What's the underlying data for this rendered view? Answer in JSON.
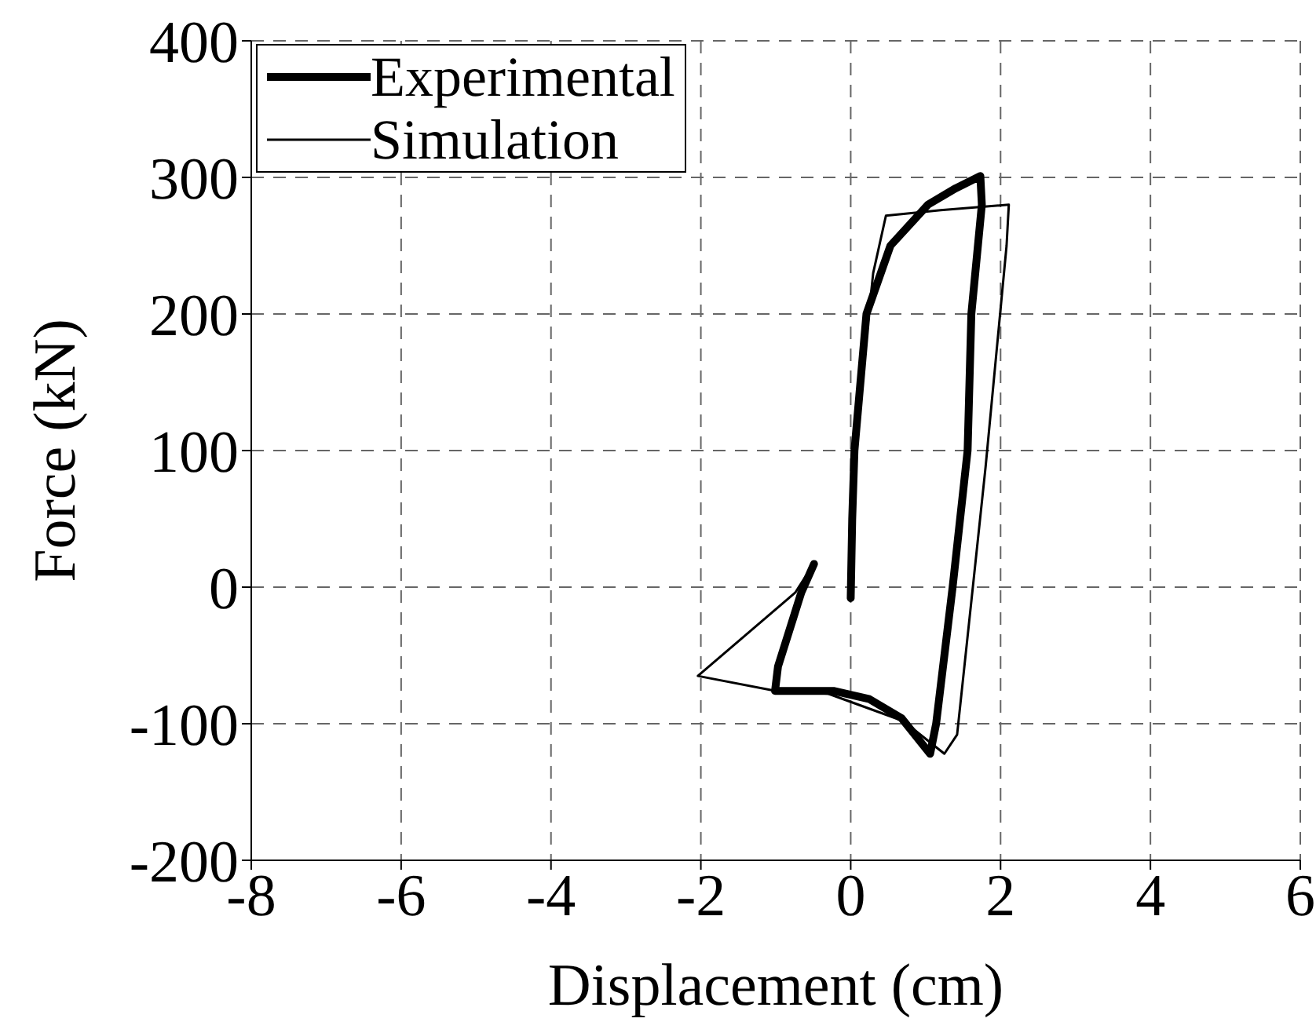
{
  "chart_data": {
    "type": "line",
    "xlabel": "Displacement (cm)",
    "ylabel": "Force (kN)",
    "xlim": [
      -8,
      6
    ],
    "ylim": [
      -200,
      400
    ],
    "xticks": [
      -8,
      -6,
      -4,
      -2,
      0,
      2,
      4,
      6
    ],
    "yticks": [
      -200,
      -100,
      0,
      100,
      200,
      300,
      400
    ],
    "grid": true,
    "legend": "top left",
    "marker": "none",
    "line_style": "solid",
    "series": [
      {
        "name": "Experimental",
        "color": "#000000",
        "x": [
          0,
          0.02,
          0.05,
          0.21,
          0.53,
          1.03,
          1.4,
          1.73,
          1.75,
          1.61,
          1.56,
          1.36,
          1.14,
          1.06,
          0.68,
          0.25,
          -0.23,
          -1.01,
          -0.97,
          -0.66,
          -0.49
        ],
        "values": [
          -8,
          50,
          100,
          200,
          250,
          280,
          292,
          301,
          280,
          200,
          100,
          0,
          -100,
          -122,
          -96,
          -82,
          -76,
          -76,
          -58,
          -4,
          17
        ]
      },
      {
        "name": "Simulation",
        "color": "#000000",
        "x": [
          0,
          0.05,
          0.3,
          0.47,
          1.2,
          2.11,
          2.08,
          1.8,
          1.63,
          1.42,
          1.25,
          0.7,
          -0.3,
          -1.0,
          -2.04,
          -0.74,
          -0.6
        ],
        "values": [
          0,
          100,
          230,
          272,
          276,
          280,
          250,
          88,
          0,
          -108,
          -122,
          -98,
          -78,
          -76,
          -65,
          -4,
          8
        ]
      }
    ]
  }
}
